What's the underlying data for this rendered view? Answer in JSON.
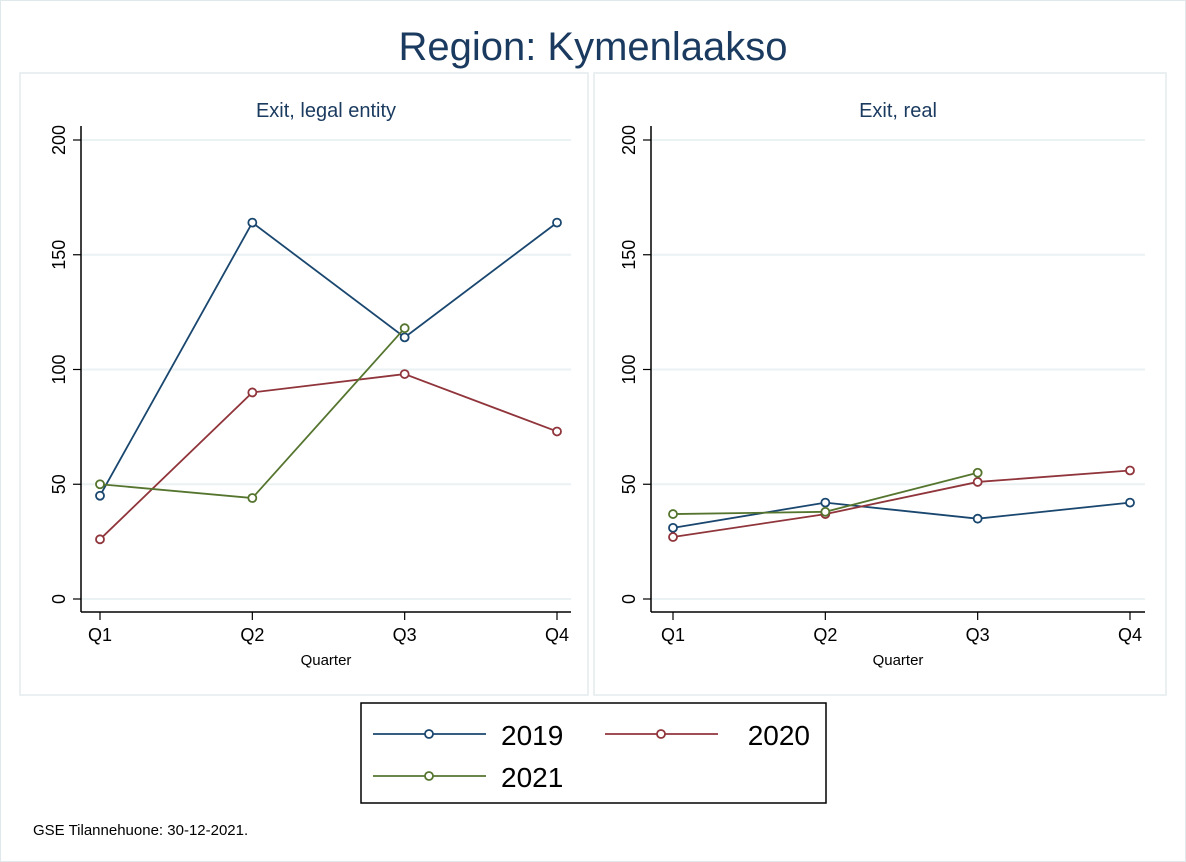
{
  "chart_data": [
    {
      "type": "line",
      "title": "Exit, legal entity",
      "xlabel": "Quarter",
      "ylabel": "",
      "categories": [
        "Q1",
        "Q2",
        "Q3",
        "Q4"
      ],
      "ylim": [
        0,
        200
      ],
      "yticks": [
        0,
        50,
        100,
        150,
        200
      ],
      "grid": true,
      "series": [
        {
          "name": "2019",
          "values": [
            45,
            164,
            114,
            164
          ]
        },
        {
          "name": "2020",
          "values": [
            26,
            90,
            98,
            73
          ]
        },
        {
          "name": "2021",
          "values": [
            50,
            44,
            118,
            null
          ]
        }
      ]
    },
    {
      "type": "line",
      "title": "Exit, real",
      "xlabel": "Quarter",
      "ylabel": "",
      "categories": [
        "Q1",
        "Q2",
        "Q3",
        "Q4"
      ],
      "ylim": [
        0,
        200
      ],
      "yticks": [
        0,
        50,
        100,
        150,
        200
      ],
      "grid": true,
      "series": [
        {
          "name": "2019",
          "values": [
            31,
            42,
            35,
            42
          ]
        },
        {
          "name": "2020",
          "values": [
            27,
            37,
            51,
            56
          ]
        },
        {
          "name": "2021",
          "values": [
            37,
            38,
            55,
            null
          ]
        }
      ]
    }
  ],
  "title": "Region: Kymenlaakso",
  "legend": {
    "placement": "bottom",
    "entries": [
      "2019",
      "2020",
      "2021"
    ]
  },
  "colors": {
    "2019": "#1a476f",
    "2020": "#90353b",
    "2021": "#55752f"
  },
  "footer": "GSE Tilannehuone: 30-12-2021."
}
